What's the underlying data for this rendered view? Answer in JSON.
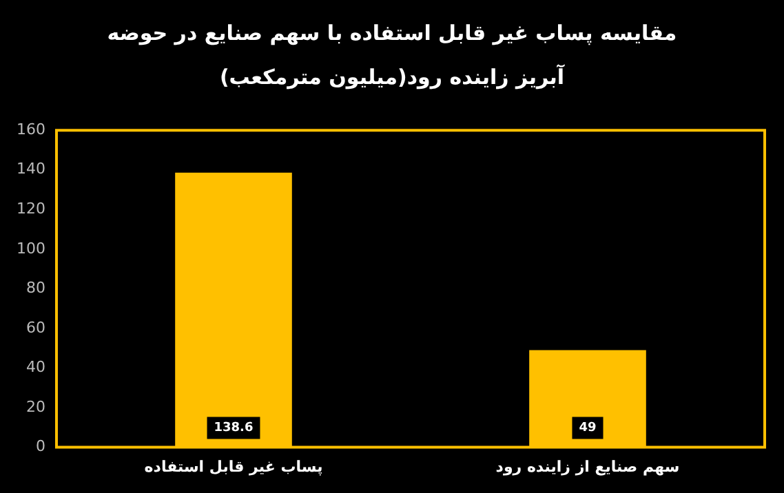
{
  "chart_data": {
    "type": "bar",
    "title": "مقایسه پساب غیر قابل استفاده با سهم صنایع در حوضه آبریز زاینده رود(میلیون مترمکعب)",
    "categories": [
      "پساب غیر قابل استفاده",
      "سهم صنایع از زاینده رود"
    ],
    "values": [
      138.6,
      49
    ],
    "color": "#ffc000",
    "ylim": [
      0,
      160
    ],
    "yticks": [
      0,
      20,
      40,
      60,
      80,
      100,
      120,
      140,
      160
    ],
    "grid": false,
    "legend": false,
    "data_labels": true
  }
}
